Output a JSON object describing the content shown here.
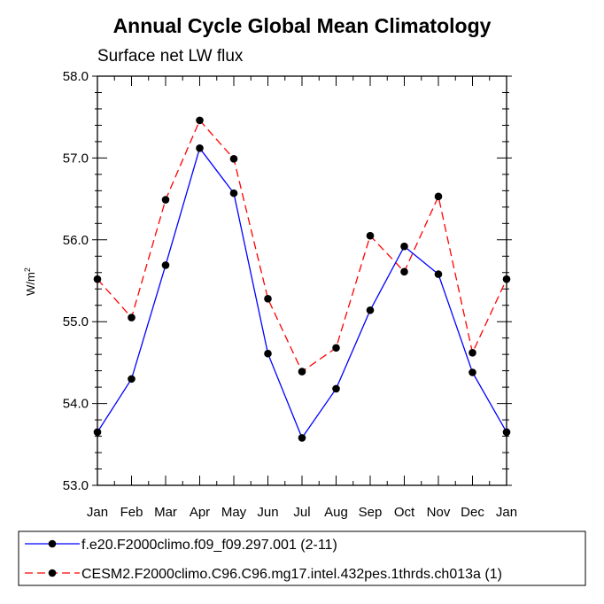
{
  "chart_data": {
    "type": "line",
    "title": "Annual Cycle Global Mean Climatology",
    "subtitle": "Surface net LW flux",
    "ylabel_base": "W/m",
    "ylabel_sup": "2",
    "categories": [
      "Jan",
      "Feb",
      "Mar",
      "Apr",
      "May",
      "Jun",
      "Jul",
      "Aug",
      "Sep",
      "Oct",
      "Nov",
      "Dec",
      "Jan"
    ],
    "ylim": [
      53.0,
      58.0
    ],
    "yticks": [
      53.0,
      54.0,
      55.0,
      56.0,
      57.0,
      58.0
    ],
    "ytick_labels": [
      "53.0",
      "54.0",
      "55.0",
      "56.0",
      "57.0",
      "58.0"
    ],
    "series": [
      {
        "name": "f.e20.F2000climo.f09_f09.297.001 (2-11)",
        "color": "#0000ff",
        "dash": "solid",
        "values": [
          53.65,
          54.3,
          55.69,
          57.12,
          56.57,
          54.61,
          53.58,
          54.18,
          55.14,
          55.92,
          55.58,
          54.38,
          53.65
        ]
      },
      {
        "name": "CESM2.F2000climo.C96.C96.mg17.intel.432pes.1thrds.ch013a (1)",
        "color": "#ff0000",
        "dash": "dashed",
        "values": [
          55.52,
          55.05,
          56.49,
          57.46,
          56.99,
          55.28,
          54.39,
          54.68,
          56.05,
          55.61,
          56.53,
          54.62,
          55.52
        ]
      }
    ]
  }
}
